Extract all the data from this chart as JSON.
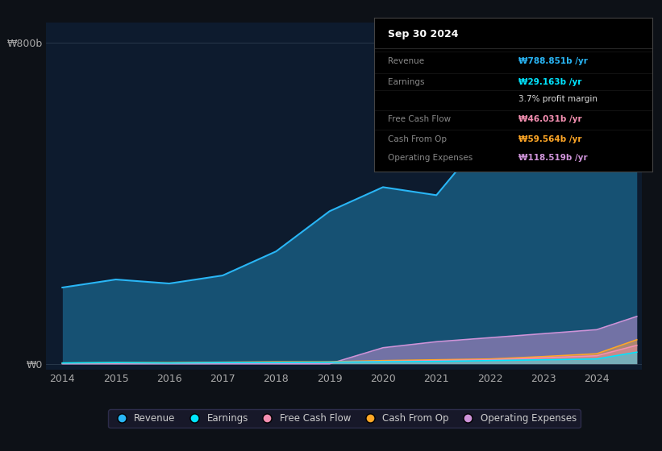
{
  "background_color": "#0d1117",
  "plot_bg_color": "#0d1b2e",
  "years": [
    2014,
    2015,
    2016,
    2017,
    2018,
    2019,
    2020,
    2021,
    2022,
    2023,
    2024,
    2024.75
  ],
  "revenue": [
    190,
    210,
    200,
    220,
    280,
    380,
    440,
    420,
    580,
    660,
    740,
    789
  ],
  "earnings": [
    2,
    3,
    2,
    3,
    3,
    4,
    5,
    6,
    8,
    10,
    12,
    29
  ],
  "free_cash_flow": [
    1,
    2,
    2,
    3,
    3,
    4,
    6,
    8,
    10,
    15,
    20,
    46
  ],
  "cash_from_op": [
    2,
    3,
    3,
    4,
    5,
    5,
    8,
    10,
    12,
    18,
    25,
    60
  ],
  "operating_expenses": [
    0,
    0,
    0,
    0,
    0,
    0,
    40,
    55,
    65,
    75,
    85,
    118
  ],
  "revenue_color": "#29b6f6",
  "earnings_color": "#00e5ff",
  "free_cash_flow_color": "#f48fb1",
  "cash_from_op_color": "#ffa726",
  "operating_expenses_color": "#ce93d8",
  "y800_label": "₩800b",
  "y0_label": "₩0",
  "x_ticks": [
    2014,
    2015,
    2016,
    2017,
    2018,
    2019,
    2020,
    2021,
    2022,
    2023,
    2024
  ],
  "tooltip_title": "Sep 30 2024",
  "tooltip_rows": [
    {
      "label": "Revenue",
      "value": "₩788.851b /yr",
      "color": "#29b6f6"
    },
    {
      "label": "Earnings",
      "value": "₩29.163b /yr",
      "color": "#00e5ff"
    },
    {
      "label": "",
      "value": "3.7% profit margin",
      "color": "#dddddd"
    },
    {
      "label": "Free Cash Flow",
      "value": "₩46.031b /yr",
      "color": "#f48fb1"
    },
    {
      "label": "Cash From Op",
      "value": "₩59.564b /yr",
      "color": "#ffa726"
    },
    {
      "label": "Operating Expenses",
      "value": "₩118.519b /yr",
      "color": "#ce93d8"
    }
  ],
  "legend_items": [
    {
      "label": "Revenue",
      "color": "#29b6f6"
    },
    {
      "label": "Earnings",
      "color": "#00e5ff"
    },
    {
      "label": "Free Cash Flow",
      "color": "#f48fb1"
    },
    {
      "label": "Cash From Op",
      "color": "#ffa726"
    },
    {
      "label": "Operating Expenses",
      "color": "#ce93d8"
    }
  ]
}
